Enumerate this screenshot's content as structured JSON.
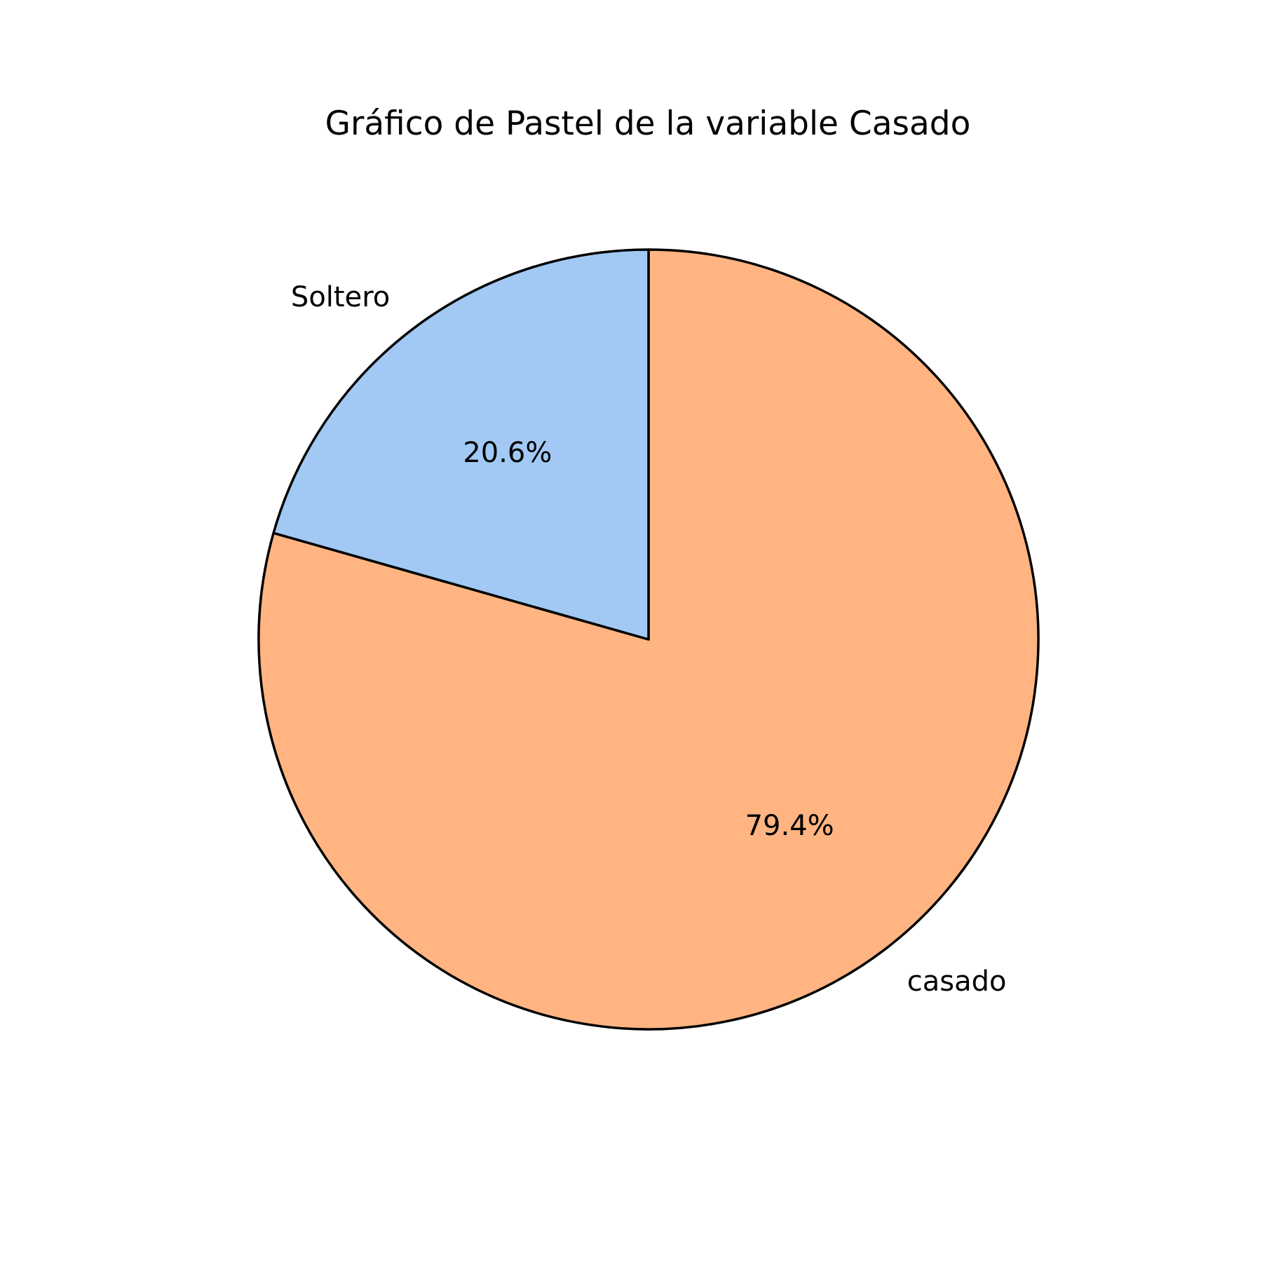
{
  "chart_data": {
    "type": "pie",
    "title": "Gráfico de Pastel de la variable Casado",
    "labels": [
      "casado",
      "Soltero"
    ],
    "values": [
      79.4,
      20.6
    ],
    "percent_labels": [
      "79.4%",
      "20.6%"
    ],
    "colors": [
      "#ffb482",
      "#a1c9f4"
    ],
    "edge_color": "#000000",
    "start_angle_deg": 90,
    "direction": "clockwise"
  }
}
